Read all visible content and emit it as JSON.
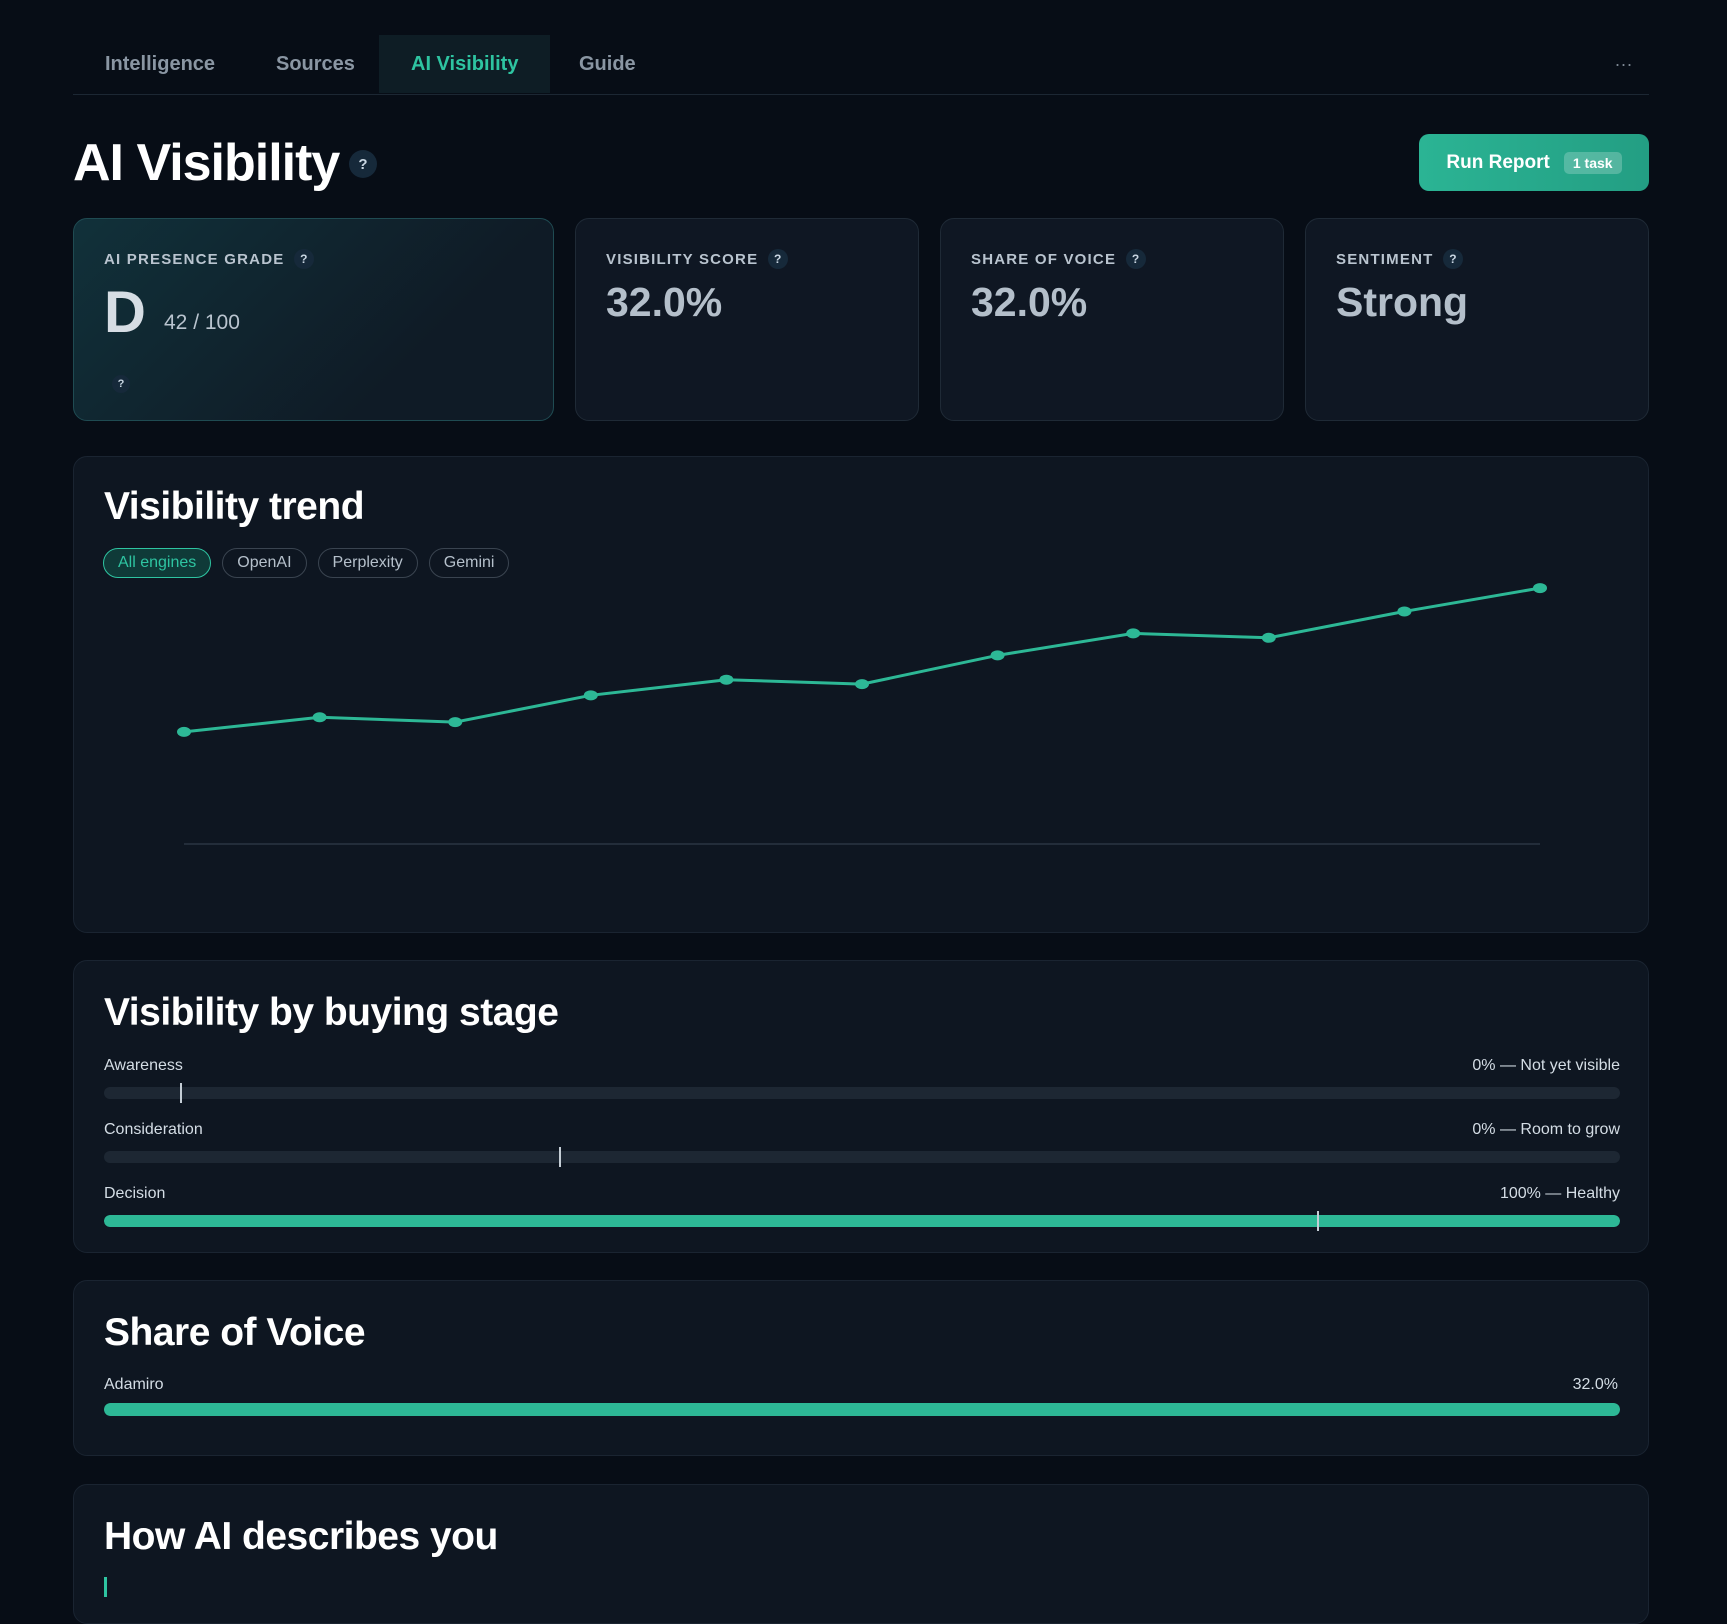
{
  "tabs": [
    {
      "label": "Intelligence"
    },
    {
      "label": "Sources"
    },
    {
      "label": "AI Visibility"
    },
    {
      "label": "Guide"
    }
  ],
  "tabs_more": "...",
  "header": {
    "title": "AI Visibility",
    "help": "?",
    "run_button": "Run Report",
    "task_badge": "1 task"
  },
  "stats": {
    "grade": {
      "label": "AI PRESENCE GRADE",
      "letter": "D",
      "score": "42 / 100"
    },
    "visibility": {
      "label": "VISIBILITY SCORE",
      "value": "32.0%"
    },
    "share": {
      "label": "SHARE OF VOICE",
      "value": "32.0%"
    },
    "sentiment": {
      "label": "SENTIMENT",
      "value": "Strong"
    }
  },
  "trend": {
    "title": "Visibility trend",
    "chips": [
      "All engines",
      "OpenAI",
      "Perplexity",
      "Gemini"
    ],
    "active_chip": 0
  },
  "chart_data": {
    "type": "line",
    "x": [
      1,
      2,
      3,
      4,
      5,
      6,
      7,
      8,
      9,
      10,
      11
    ],
    "series": [
      {
        "values": [
          23,
          26,
          25,
          30.5,
          33.7,
          32.8,
          38.7,
          43.2,
          42.3,
          47.7,
          52.5
        ]
      }
    ],
    "ylim": [
      0,
      64
    ],
    "grid": false,
    "line_color": "#2db896"
  },
  "stages": {
    "title": "Visibility by buying stage",
    "items": [
      {
        "name": "Awareness",
        "status": "0% — Not yet visible",
        "fill": 0,
        "marker": 0.05
      },
      {
        "name": "Consideration",
        "status": "0% — Room to grow",
        "fill": 0,
        "marker": 0.3
      },
      {
        "name": "Decision",
        "status": "100% — Healthy",
        "fill": 1,
        "marker": 0.8
      }
    ]
  },
  "share_of_voice": {
    "title": "Share of Voice",
    "brand": "Adamiro",
    "value": "32.0%",
    "fill": 1
  },
  "describe": {
    "title": "How AI describes you"
  },
  "colors": {
    "accent": "#2ec4a1",
    "background": "#070d16",
    "card": "#0f1723"
  }
}
